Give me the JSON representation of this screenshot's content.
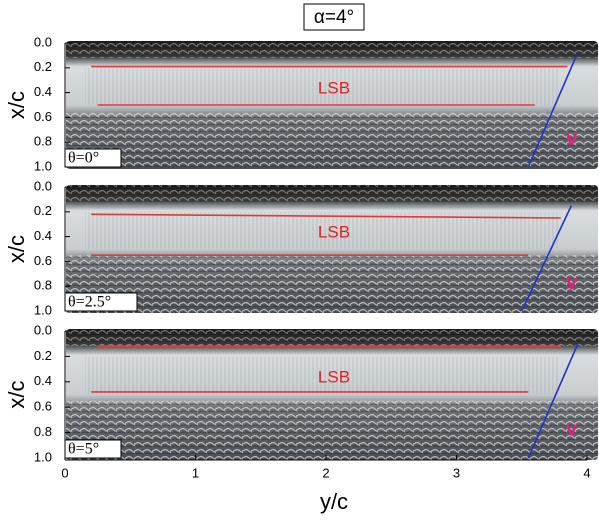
{
  "chart_data": [
    {
      "type": "image",
      "title": "α=4°",
      "ylabel": "x/c",
      "ylim": [
        0,
        1
      ],
      "yticks": [
        {
          "value": 0,
          "label": "0.0"
        },
        {
          "value": 0.2,
          "label": "0.2"
        },
        {
          "value": 0.4,
          "label": "0.4"
        },
        {
          "value": 0.6,
          "label": "0.6"
        },
        {
          "value": 0.8,
          "label": "0.8"
        },
        {
          "value": 1,
          "label": "1.0"
        }
      ],
      "xlim": [
        0,
        4
      ],
      "label": "θ=0°",
      "annotations": [
        "LSB",
        "v"
      ],
      "lines": [
        {
          "color": "#e03a3a",
          "x": [
            0.2,
            3.85
          ],
          "values": [
            0.19,
            0.19
          ]
        },
        {
          "color": "#e03a3a",
          "x": [
            0.25,
            3.6
          ],
          "values": [
            0.5,
            0.5
          ]
        },
        {
          "color": "#2233cc",
          "x": [
            3.55,
            3.92
          ],
          "values": [
            1.0,
            0.1
          ]
        }
      ]
    },
    {
      "type": "image",
      "ylabel": "x/c",
      "ylim": [
        0,
        1
      ],
      "yticks": [
        {
          "value": 0,
          "label": "0.0"
        },
        {
          "value": 0.2,
          "label": "0.2"
        },
        {
          "value": 0.4,
          "label": "0.4"
        },
        {
          "value": 0.6,
          "label": "0.6"
        },
        {
          "value": 0.8,
          "label": "0.8"
        },
        {
          "value": 1,
          "label": "1.0"
        }
      ],
      "xlim": [
        0,
        4
      ],
      "label": "θ=2.5°",
      "annotations": [
        "LSB",
        "v"
      ],
      "lines": [
        {
          "color": "#e03a3a",
          "x": [
            0.2,
            3.8
          ],
          "values": [
            0.22,
            0.25
          ]
        },
        {
          "color": "#e03a3a",
          "x": [
            0.2,
            3.55
          ],
          "values": [
            0.55,
            0.55
          ]
        },
        {
          "color": "#2233cc",
          "x": [
            3.5,
            3.88
          ],
          "values": [
            1.0,
            0.15
          ]
        }
      ]
    },
    {
      "type": "image",
      "ylabel": "x/c",
      "ylim": [
        0,
        1
      ],
      "yticks": [
        {
          "value": 0,
          "label": "0.0"
        },
        {
          "value": 0.2,
          "label": "0.2"
        },
        {
          "value": 0.4,
          "label": "0.4"
        },
        {
          "value": 0.6,
          "label": "0.6"
        },
        {
          "value": 0.8,
          "label": "0.8"
        },
        {
          "value": 1,
          "label": "1.0"
        }
      ],
      "xlim": [
        0,
        4
      ],
      "xlabel": "y/c",
      "xticks": [
        0,
        1,
        2,
        3,
        4
      ],
      "label": "θ=5°",
      "annotations": [
        "LSB",
        "v"
      ],
      "lines": [
        {
          "color": "#e03a3a",
          "x": [
            0.25,
            3.8
          ],
          "values": [
            0.12,
            0.12
          ]
        },
        {
          "color": "#e03a3a",
          "x": [
            0.2,
            3.55
          ],
          "values": [
            0.48,
            0.48
          ]
        },
        {
          "color": "#2233cc",
          "x": [
            3.55,
            3.93
          ],
          "values": [
            1.0,
            0.1
          ]
        }
      ]
    }
  ]
}
